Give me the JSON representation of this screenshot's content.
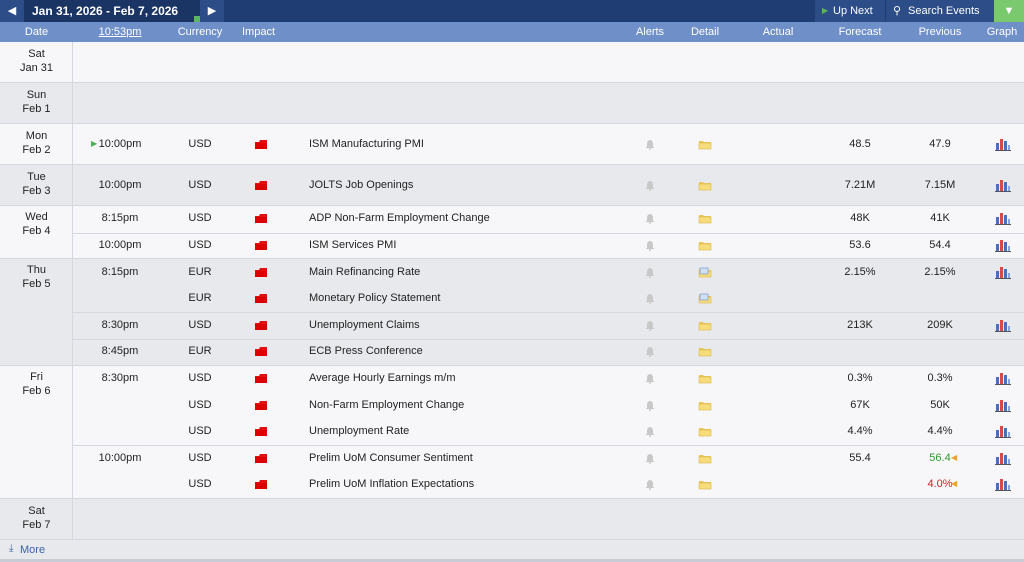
{
  "toolbar": {
    "date_range": "Jan 31, 2026 - Feb 7, 2026",
    "up_next": "Up Next",
    "search": "Search Events"
  },
  "header": {
    "date": "Date",
    "time": "10:53pm",
    "currency": "Currency",
    "impact": "Impact",
    "alerts": "Alerts",
    "detail": "Detail",
    "actual": "Actual",
    "forecast": "Forecast",
    "previous": "Previous",
    "graph": "Graph"
  },
  "days": [
    {
      "day": "Sat",
      "date": "Jan 31",
      "events": []
    },
    {
      "day": "Sun",
      "date": "Feb 1",
      "events": []
    },
    {
      "day": "Mon",
      "date": "Feb 2",
      "events": [
        {
          "time": "10:00pm",
          "upcoming": true,
          "currency": "USD",
          "title": "ISM Manufacturing PMI",
          "forecast": "48.5",
          "previous": "47.9"
        }
      ]
    },
    {
      "day": "Tue",
      "date": "Feb 3",
      "events": [
        {
          "time": "10:00pm",
          "currency": "USD",
          "title": "JOLTS Job Openings",
          "forecast": "7.21M",
          "previous": "7.15M"
        }
      ]
    },
    {
      "day": "Wed",
      "date": "Feb 4",
      "events": [
        {
          "time": "8:15pm",
          "currency": "USD",
          "title": "ADP Non-Farm Employment Change",
          "forecast": "48K",
          "previous": "41K"
        },
        {
          "time": "10:00pm",
          "currency": "USD",
          "title": "ISM Services PMI",
          "forecast": "53.6",
          "previous": "54.4"
        }
      ]
    },
    {
      "day": "Thu",
      "date": "Feb 5",
      "events": [
        {
          "time": "8:15pm",
          "currency": "EUR",
          "title": "Main Refinancing Rate",
          "forecast": "2.15%",
          "previous": "2.15%",
          "detail_note": true
        },
        {
          "currency": "EUR",
          "title": "Monetary Policy Statement",
          "detail_note": true
        },
        {
          "time": "8:30pm",
          "currency": "USD",
          "title": "Unemployment Claims",
          "forecast": "213K",
          "previous": "209K"
        },
        {
          "time": "8:45pm",
          "currency": "EUR",
          "title": "ECB Press Conference"
        }
      ]
    },
    {
      "day": "Fri",
      "date": "Feb 6",
      "events": [
        {
          "time": "8:30pm",
          "currency": "USD",
          "title": "Average Hourly Earnings m/m",
          "forecast": "0.3%",
          "previous": "0.3%"
        },
        {
          "currency": "USD",
          "title": "Non-Farm Employment Change",
          "forecast": "67K",
          "previous": "50K"
        },
        {
          "currency": "USD",
          "title": "Unemployment Rate",
          "forecast": "4.4%",
          "previous": "4.4%"
        },
        {
          "time": "10:00pm",
          "currency": "USD",
          "title": "Prelim UoM Consumer Sentiment",
          "forecast": "55.4",
          "previous": "56.4",
          "revised": "better"
        },
        {
          "currency": "USD",
          "title": "Prelim UoM Inflation Expectations",
          "previous": "4.0%",
          "revised": "worse"
        }
      ]
    },
    {
      "day": "Sat",
      "date": "Feb 7",
      "events": []
    }
  ],
  "more": "More"
}
